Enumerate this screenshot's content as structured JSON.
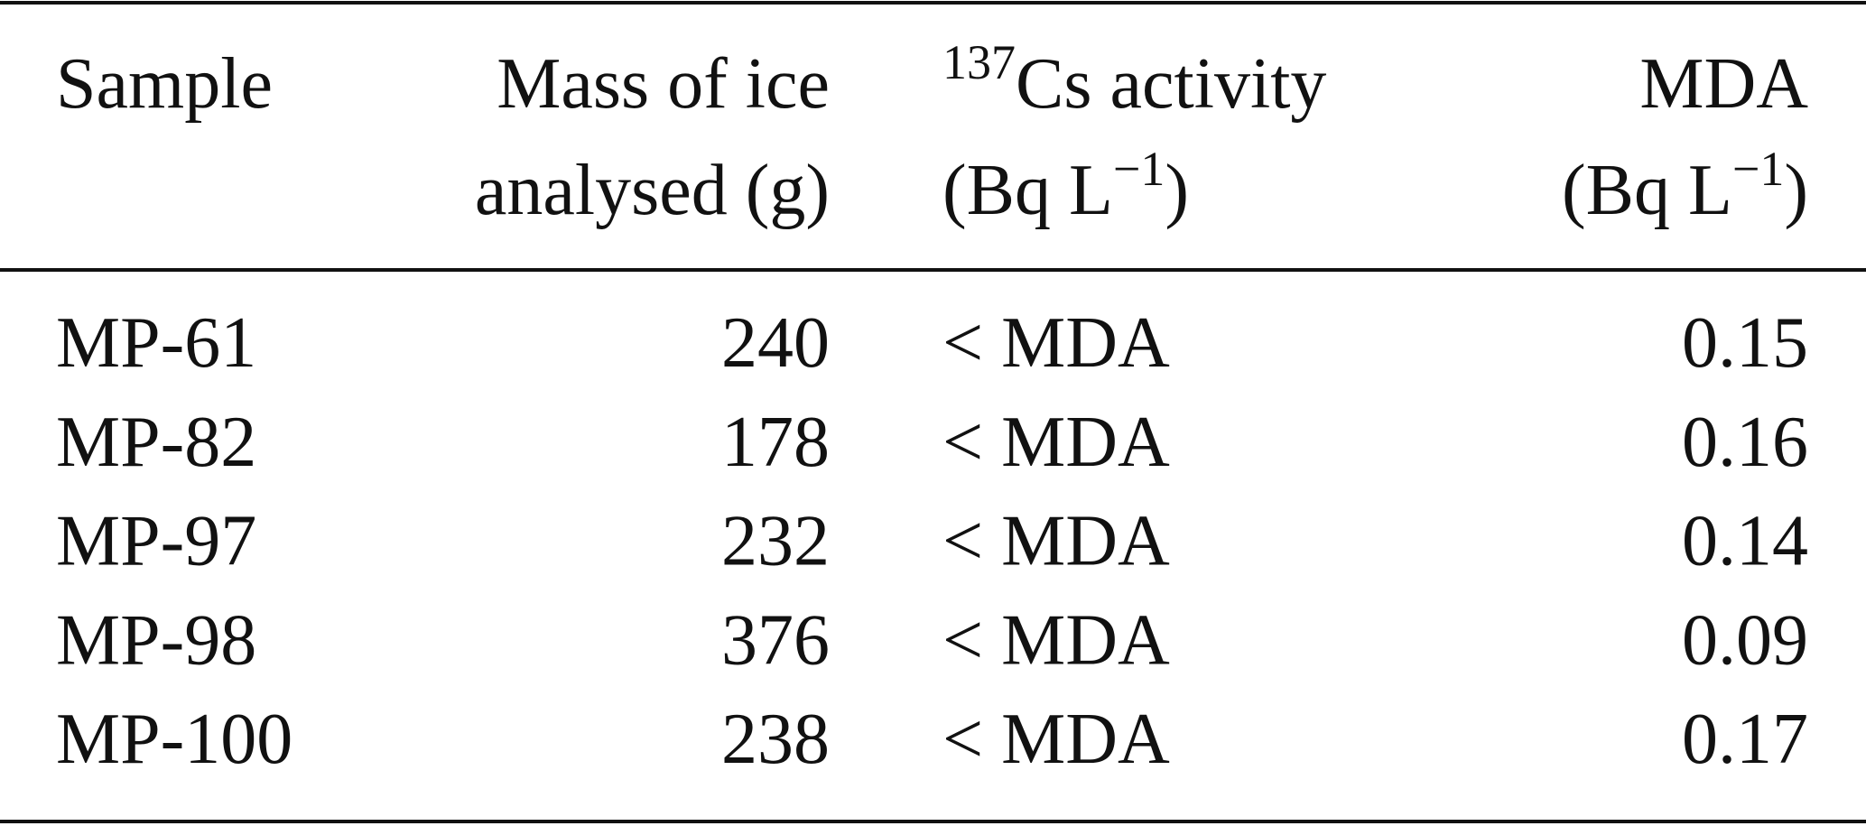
{
  "table": {
    "header": {
      "sample": "Sample",
      "mass": [
        "Mass of ice",
        "analysed (g)"
      ],
      "activity": {
        "isotope": "137",
        "line1": "Cs activity",
        "unit": "(Bq L",
        "unit_exp": "−1",
        "unit_close": ")"
      },
      "mda": {
        "line1": "MDA",
        "unit": "(Bq L",
        "unit_exp": "−1",
        "unit_close": ")"
      }
    },
    "rows": [
      [
        "MP-61",
        240,
        "< MDA",
        0.15
      ],
      [
        "MP-82",
        178,
        "< MDA",
        0.16
      ],
      [
        "MP-97",
        232,
        "< MDA",
        0.14
      ],
      [
        "MP-98",
        376,
        "< MDA",
        0.09
      ],
      [
        "MP-100",
        238,
        "< MDA",
        0.17
      ]
    ]
  }
}
